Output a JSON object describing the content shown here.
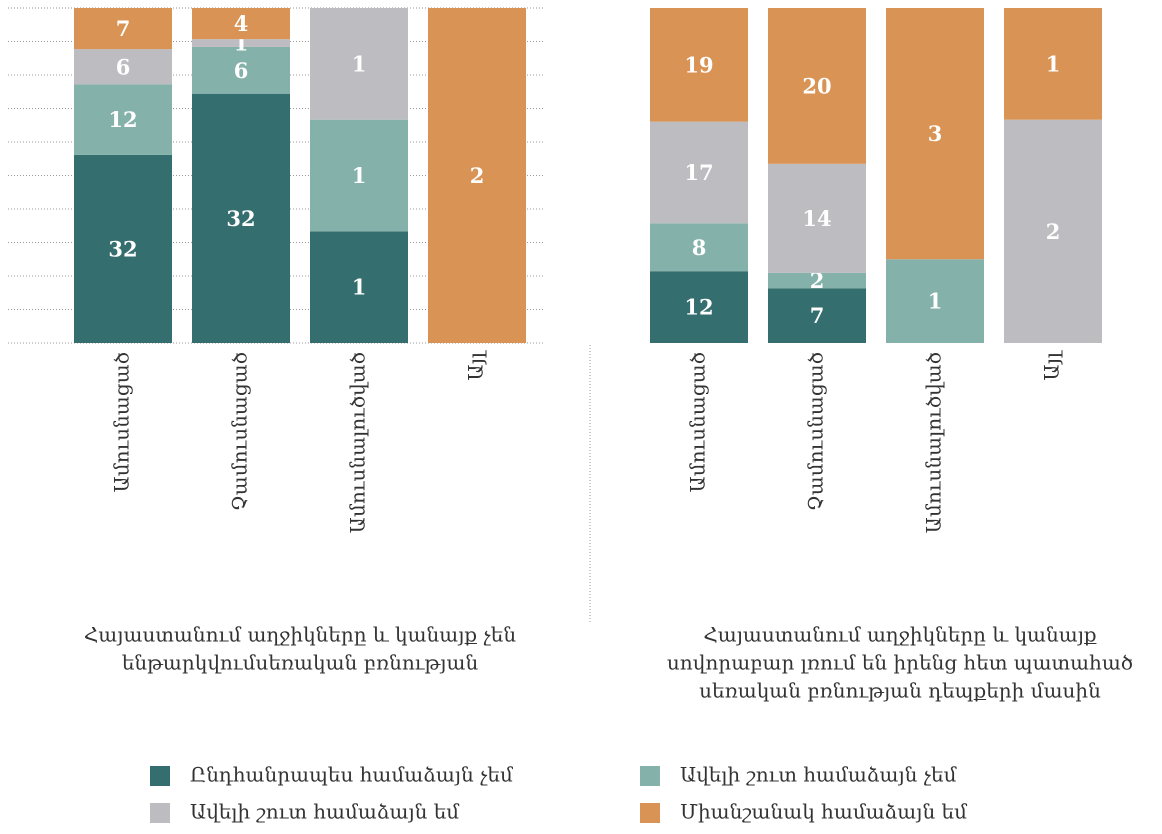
{
  "chart_data": [
    {
      "type": "bar",
      "stacked": "percent",
      "title": [
        "Հայաստանում աղջիկները և կանայք չեն",
        "ենթարկվումսեռական բռնության"
      ],
      "categories": [
        "Ամուսնացած",
        "Չամուսնացած",
        "Ամուսնալուծված",
        "Այլ"
      ],
      "ylim": [
        0,
        100
      ],
      "yticks": [
        0,
        10,
        20,
        30,
        40,
        50,
        60,
        70,
        80,
        90,
        100
      ],
      "grid": true,
      "series": [
        {
          "name": "Ընդհանրապես համաձայն չեմ",
          "color": "#356e6e",
          "values": [
            32,
            32,
            1,
            0
          ]
        },
        {
          "name": "Ավելի շուտ համաձայն չեմ",
          "color": "#84b2aa",
          "values": [
            12,
            6,
            1,
            0
          ]
        },
        {
          "name": "Ավելի շուտ համաձայն եմ",
          "color": "#bdbdc1",
          "values": [
            6,
            1,
            1,
            0
          ]
        },
        {
          "name": "Միանշանակ համաձայն եմ",
          "color": "#d99355",
          "values": [
            7,
            4,
            0,
            2
          ]
        }
      ]
    },
    {
      "type": "bar",
      "stacked": "percent",
      "title": [
        "Հայաստանում աղջիկները և կանայք",
        "սովորաբար լռում են իրենց հետ պատահած",
        "սեռական բռնության դեպքերի մասին"
      ],
      "categories": [
        "Ամուսնացած",
        "Չամուսնացած",
        "Ամուսնալուծված",
        "Այլ"
      ],
      "ylim": [
        0,
        100
      ],
      "grid": false,
      "series": [
        {
          "name": "Ընդհանրապես համաձայն չեմ",
          "color": "#356e6e",
          "values": [
            12,
            7,
            0,
            0
          ]
        },
        {
          "name": "Ավելի շուտ համաձայն չեմ",
          "color": "#84b2aa",
          "values": [
            8,
            2,
            1,
            0
          ]
        },
        {
          "name": "Ավելի շուտ համաձայն եմ",
          "color": "#bdbdc1",
          "values": [
            17,
            14,
            0,
            2
          ]
        },
        {
          "name": "Միանշանակ համաձայն եմ",
          "color": "#d99355",
          "values": [
            19,
            20,
            3,
            1
          ]
        }
      ]
    }
  ]
}
